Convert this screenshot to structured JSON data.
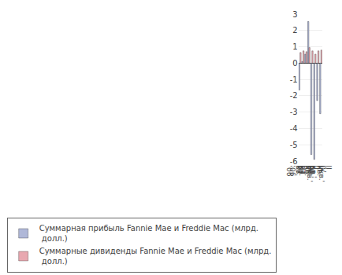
{
  "chart_data": {
    "type": "bar",
    "categories": [
      "III\nкв.\n'06",
      "IV\nкв.\n'06",
      "I кв.'\n07",
      "II\nкв.'\n07",
      "III\nкв.'\n07",
      "IV\nкв.'\n07",
      "I кв.'\n08",
      "II\nкв.'\n08"
    ],
    "series": [
      {
        "name": "Суммарная прибыль Fannie Mae и Freddie Mac (млрд.\n долл.)",
        "color": "#b0b8d8",
        "values": [
          -1.65,
          0.1,
          0.55,
          2.55,
          -5.6,
          -5.9,
          -2.3,
          -3.1
        ]
      },
      {
        "name": "Суммарные дивиденды Fannie Mae и Freddie Mac (млрд.\n долл.)",
        "color": "#e8a8b0",
        "values": [
          0.65,
          0.75,
          0.7,
          0.95,
          0.75,
          0.55,
          0.75,
          0.8
        ]
      }
    ],
    "ylim": [
      -6,
      3
    ],
    "yticks": [
      -6,
      -5,
      -4,
      -3,
      -2,
      -1,
      0,
      1,
      2,
      3
    ],
    "grid": true,
    "legend": "lower left"
  }
}
